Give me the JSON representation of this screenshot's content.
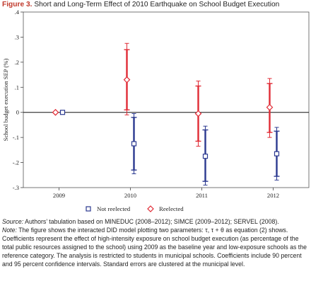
{
  "figure": {
    "label": "Figure 3.",
    "title": "Short and Long-Term Effect of 2010 Earthquake on School Budget Execution"
  },
  "chart_data": {
    "type": "scatter",
    "title": "",
    "xlabel": "",
    "ylabel": "School budget execution SEP (%)",
    "ylim": [
      -0.3,
      0.4
    ],
    "yticks": [
      ".4",
      ".3",
      ".2",
      ".1",
      "0",
      "-.1",
      "-.2",
      "-.3"
    ],
    "categories": [
      "2009",
      "2010",
      "2011",
      "2012"
    ],
    "reference_line": 0,
    "grid": false,
    "legend_position": "bottom",
    "series": [
      {
        "name": "Not reelected",
        "color": "#2b3990",
        "marker": "square",
        "points": [
          {
            "x": "2009",
            "y": 0.0,
            "ci90": [
              0.0,
              0.0
            ],
            "ci95": [
              0.0,
              0.0
            ]
          },
          {
            "x": "2010",
            "y": -0.125,
            "ci90": [
              -0.23,
              -0.02
            ],
            "ci95": [
              -0.245,
              -0.005
            ]
          },
          {
            "x": "2011",
            "y": -0.175,
            "ci90": [
              -0.275,
              -0.07
            ],
            "ci95": [
              -0.29,
              -0.055
            ]
          },
          {
            "x": "2012",
            "y": -0.165,
            "ci90": [
              -0.255,
              -0.075
            ],
            "ci95": [
              -0.27,
              -0.06
            ]
          }
        ]
      },
      {
        "name": "Reelected",
        "color": "#e02b35",
        "marker": "diamond",
        "points": [
          {
            "x": "2009",
            "y": 0.0,
            "ci90": [
              0.0,
              0.0
            ],
            "ci95": [
              0.0,
              0.0
            ]
          },
          {
            "x": "2010",
            "y": 0.13,
            "ci90": [
              0.01,
              0.25
            ],
            "ci95": [
              -0.01,
              0.275
            ]
          },
          {
            "x": "2011",
            "y": -0.005,
            "ci90": [
              -0.115,
              0.105
            ],
            "ci95": [
              -0.135,
              0.125
            ]
          },
          {
            "x": "2012",
            "y": 0.02,
            "ci90": [
              -0.08,
              0.115
            ],
            "ci95": [
              -0.1,
              0.135
            ]
          }
        ]
      }
    ]
  },
  "notes": {
    "source_label": "Source:",
    "source_text": " Authors’ tabulation based on MINEDUC (2008–2012); SIMCE (2009–2012); SERVEL (2008).",
    "note_label": "Note:",
    "note_text": " The figure shows the interacted DID model plotting two parameters: τ, τ + θ as equation (2) shows. Coefficients represent the effect of high-intensity exposure on school budget execution (as percentage of the total public resources assigned to the school) using 2009 as the baseline year and low-exposure schools as the reference category. The analysis is restricted to students in municipal schools. Coefficients include 90 percent and 95 percent confidence intervals. Standard errors are clustered at the municipal level."
  }
}
